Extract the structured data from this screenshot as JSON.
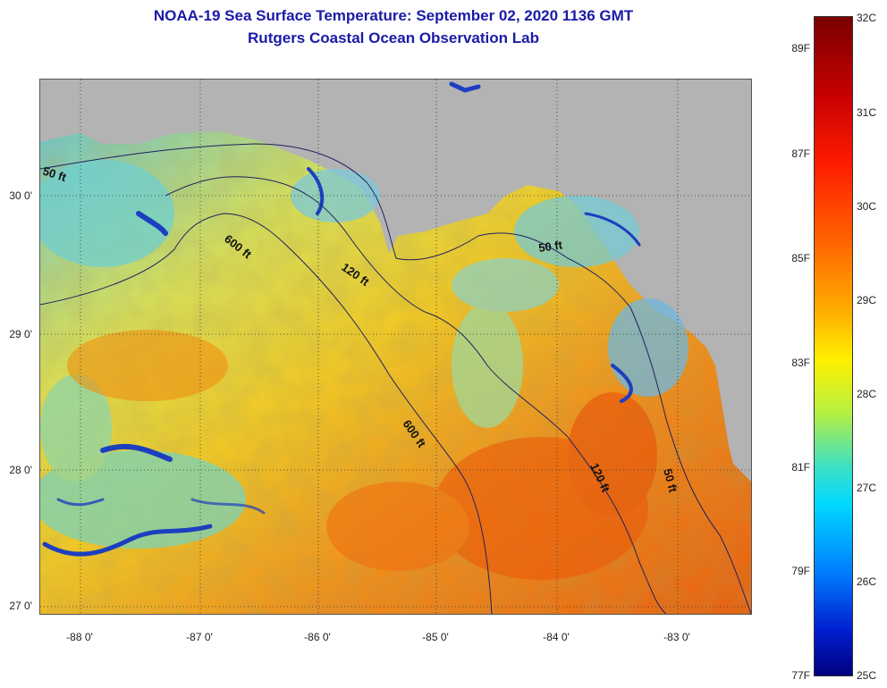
{
  "title": {
    "line1": "NOAA-19 Sea Surface Temperature:  September 02, 2020 1136 GMT",
    "line2": "Rutgers Coastal Ocean Observation Lab"
  },
  "axes": {
    "lat_labels": [
      "30 0'",
      "29 0'",
      "28 0'",
      "27 0'"
    ],
    "lon_labels": [
      "-88 0'",
      "-87 0'",
      "-86 0'",
      "-85 0'",
      "-84 0'",
      "-83 0'"
    ]
  },
  "contour_labels": {
    "ft50_west": "50 ft",
    "ft600_north": "600 ft",
    "ft120_north": "120 ft",
    "ft50_east": "50 ft",
    "ft600_south": "600 ft",
    "ft120_south": "120 ft",
    "ft50_south": "50 ft"
  },
  "colorbar": {
    "fahrenheit": [
      "89F",
      "87F",
      "85F",
      "83F",
      "81F",
      "79F",
      "77F"
    ],
    "celsius": [
      "32C",
      "31C",
      "30C",
      "29C",
      "28C",
      "27C",
      "26C",
      "25C"
    ]
  },
  "colors": {
    "title": "#1a1aa8",
    "land": "#b3b3b3",
    "warm": "#f06a0e",
    "mid": "#f7d21e",
    "cool": "#7ad3b8",
    "cold": "#1c3fbf"
  }
}
